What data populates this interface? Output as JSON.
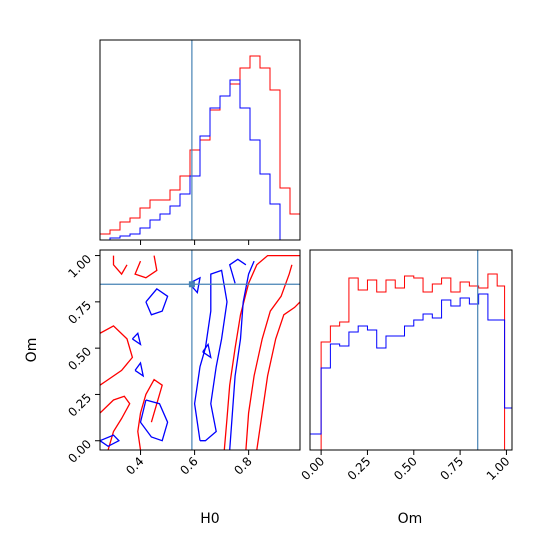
{
  "chart_data": {
    "type": "corner",
    "parameters": [
      "H0",
      "Om"
    ],
    "truth": {
      "H0": 0.59,
      "Om": 0.845
    },
    "colors": {
      "red": "#ff0000",
      "blue": "#0000ff",
      "truth": "#4682b4"
    },
    "panels": [
      {
        "id": "hist-H0",
        "type": "histogram",
        "x_range": [
          0.25,
          0.99
        ],
        "x_ticks": [
          "0.4",
          "0.6",
          "0.8"
        ],
        "tick_labels_shown": false,
        "bin_edges": [
          0.25,
          0.287,
          0.324,
          0.361,
          0.398,
          0.435,
          0.472,
          0.509,
          0.546,
          0.583,
          0.62,
          0.657,
          0.694,
          0.731,
          0.768,
          0.805,
          0.842,
          0.879,
          0.916,
          0.953,
          0.99
        ],
        "series": [
          {
            "color": "red",
            "values": [
              0.03,
              0.05,
              0.09,
              0.11,
              0.16,
              0.2,
              0.2,
              0.25,
              0.32,
              0.45,
              0.5,
              0.65,
              0.72,
              0.78,
              0.86,
              0.92,
              0.86,
              0.75,
              0.26,
              0.13
            ]
          },
          {
            "color": "blue",
            "values": [
              0.0,
              0.01,
              0.02,
              0.03,
              0.06,
              0.1,
              0.13,
              0.17,
              0.23,
              0.32,
              0.52,
              0.66,
              0.72,
              0.8,
              0.66,
              0.5,
              0.33,
              0.18,
              0.0,
              0.0
            ]
          }
        ]
      },
      {
        "id": "contour-H0-Om",
        "type": "contour",
        "xlabel": "H0",
        "ylabel": "Om",
        "x_range": [
          0.25,
          0.99
        ],
        "y_range": [
          -0.05,
          1.03
        ],
        "x_ticks": [
          "0.4",
          "0.6",
          "0.8"
        ],
        "y_ticks": [
          "0.00",
          "0.25",
          "0.50",
          "0.75",
          "1.00"
        ],
        "truth_marker": {
          "x": 0.59,
          "y": 0.845
        },
        "contours": [
          {
            "color": "red",
            "points": [
              [
                0.71,
                -0.05
              ],
              [
                0.72,
                0.12
              ],
              [
                0.73,
                0.3
              ],
              [
                0.75,
                0.5
              ],
              [
                0.77,
                0.68
              ],
              [
                0.8,
                0.85
              ],
              [
                0.83,
                0.95
              ],
              [
                0.87,
                1.0
              ],
              [
                0.99,
                1.0
              ]
            ]
          },
          {
            "color": "red",
            "points": [
              [
                0.79,
                -0.05
              ],
              [
                0.8,
                0.15
              ],
              [
                0.82,
                0.35
              ],
              [
                0.85,
                0.55
              ],
              [
                0.88,
                0.7
              ],
              [
                0.92,
                0.78
              ],
              [
                0.95,
                0.9
              ],
              [
                0.96,
                0.95
              ]
            ]
          },
          {
            "color": "red",
            "points": [
              [
                0.83,
                -0.05
              ],
              [
                0.85,
                0.15
              ],
              [
                0.87,
                0.35
              ],
              [
                0.9,
                0.55
              ],
              [
                0.93,
                0.68
              ],
              [
                0.97,
                0.72
              ],
              [
                0.99,
                0.75
              ]
            ]
          },
          {
            "color": "red",
            "points": [
              [
                0.25,
                0.58
              ],
              [
                0.3,
                0.62
              ],
              [
                0.35,
                0.55
              ],
              [
                0.37,
                0.45
              ],
              [
                0.33,
                0.38
              ],
              [
                0.27,
                0.32
              ],
              [
                0.25,
                0.3
              ]
            ]
          },
          {
            "color": "red",
            "points": [
              [
                0.25,
                0.15
              ],
              [
                0.3,
                0.22
              ],
              [
                0.34,
                0.24
              ],
              [
                0.36,
                0.2
              ],
              [
                0.33,
                0.12
              ],
              [
                0.3,
                0.05
              ],
              [
                0.28,
                -0.05
              ]
            ]
          },
          {
            "color": "red",
            "points": [
              [
                0.35,
                0.95
              ],
              [
                0.33,
                0.9
              ],
              [
                0.3,
                0.95
              ],
              [
                0.3,
                1.0
              ]
            ]
          },
          {
            "color": "red",
            "points": [
              [
                0.4,
                0.97
              ],
              [
                0.38,
                0.9
              ],
              [
                0.42,
                0.88
              ],
              [
                0.46,
                0.92
              ],
              [
                0.45,
                1.0
              ]
            ]
          },
          {
            "color": "red",
            "points": [
              [
                0.44,
                0.1
              ],
              [
                0.46,
                0.2
              ],
              [
                0.48,
                0.3
              ],
              [
                0.45,
                0.33
              ],
              [
                0.42,
                0.25
              ],
              [
                0.4,
                0.15
              ],
              [
                0.39,
                0.05
              ],
              [
                0.4,
                -0.05
              ]
            ]
          },
          {
            "color": "blue",
            "points": [
              [
                0.62,
                0.0
              ],
              [
                0.6,
                0.2
              ],
              [
                0.62,
                0.4
              ],
              [
                0.64,
                0.5
              ],
              [
                0.66,
                0.7
              ],
              [
                0.66,
                0.9
              ],
              [
                0.7,
                0.92
              ],
              [
                0.72,
                0.75
              ],
              [
                0.7,
                0.55
              ],
              [
                0.68,
                0.4
              ],
              [
                0.66,
                0.2
              ],
              [
                0.68,
                0.05
              ],
              [
                0.64,
                0.0
              ],
              [
                0.62,
                0.0
              ]
            ]
          },
          {
            "color": "blue",
            "points": [
              [
                0.73,
                -0.05
              ],
              [
                0.74,
                0.15
              ],
              [
                0.75,
                0.35
              ],
              [
                0.77,
                0.55
              ],
              [
                0.78,
                0.75
              ],
              [
                0.8,
                0.9
              ],
              [
                0.82,
                0.97
              ]
            ]
          },
          {
            "color": "blue",
            "points": [
              [
                0.75,
                0.85
              ],
              [
                0.73,
                0.95
              ],
              [
                0.76,
                0.98
              ],
              [
                0.79,
                0.95
              ]
            ]
          },
          {
            "color": "blue",
            "points": [
              [
                0.25,
                0.0
              ],
              [
                0.3,
                0.03
              ],
              [
                0.32,
                0.0
              ],
              [
                0.28,
                -0.03
              ],
              [
                0.25,
                0.0
              ]
            ]
          },
          {
            "color": "blue",
            "points": [
              [
                0.42,
                0.22
              ],
              [
                0.47,
                0.2
              ],
              [
                0.5,
                0.1
              ],
              [
                0.48,
                0.0
              ],
              [
                0.44,
                0.02
              ],
              [
                0.4,
                0.1
              ],
              [
                0.42,
                0.22
              ]
            ]
          },
          {
            "color": "blue",
            "points": [
              [
                0.42,
                0.75
              ],
              [
                0.46,
                0.82
              ],
              [
                0.5,
                0.78
              ],
              [
                0.48,
                0.7
              ],
              [
                0.44,
                0.68
              ],
              [
                0.42,
                0.75
              ]
            ]
          },
          {
            "color": "blue",
            "points": [
              [
                0.37,
                0.55
              ],
              [
                0.39,
                0.58
              ],
              [
                0.4,
                0.52
              ],
              [
                0.37,
                0.55
              ]
            ]
          },
          {
            "color": "blue",
            "points": [
              [
                0.38,
                0.38
              ],
              [
                0.4,
                0.42
              ],
              [
                0.41,
                0.35
              ],
              [
                0.38,
                0.38
              ]
            ]
          },
          {
            "color": "blue",
            "points": [
              [
                0.63,
                0.48
              ],
              [
                0.65,
                0.52
              ],
              [
                0.66,
                0.45
              ],
              [
                0.63,
                0.48
              ]
            ]
          },
          {
            "color": "blue",
            "points": [
              [
                0.58,
                0.85
              ],
              [
                0.62,
                0.88
              ],
              [
                0.61,
                0.8
              ],
              [
                0.58,
                0.85
              ]
            ]
          }
        ]
      },
      {
        "id": "hist-Om",
        "type": "histogram",
        "xlabel": "Om",
        "x_range": [
          -0.06,
          1.03
        ],
        "x_ticks": [
          "0.00",
          "0.25",
          "0.50",
          "0.75",
          "1.00"
        ],
        "bin_edges": [
          -0.06,
          0.0,
          0.05,
          0.1,
          0.15,
          0.2,
          0.25,
          0.3,
          0.35,
          0.4,
          0.45,
          0.5,
          0.55,
          0.6,
          0.65,
          0.7,
          0.75,
          0.8,
          0.85,
          0.9,
          0.95,
          0.99,
          1.03
        ],
        "series": [
          {
            "color": "red",
            "values": [
              0.0,
              0.54,
              0.62,
              0.64,
              0.86,
              0.8,
              0.85,
              0.79,
              0.85,
              0.81,
              0.87,
              0.86,
              0.79,
              0.83,
              0.86,
              0.79,
              0.84,
              0.82,
              0.81,
              0.88,
              0.82,
              0.0
            ]
          },
          {
            "color": "blue",
            "values": [
              0.08,
              0.41,
              0.53,
              0.52,
              0.59,
              0.62,
              0.6,
              0.51,
              0.57,
              0.57,
              0.62,
              0.65,
              0.68,
              0.66,
              0.75,
              0.72,
              0.76,
              0.73,
              0.78,
              0.65,
              0.65,
              0.21
            ]
          }
        ]
      }
    ]
  }
}
